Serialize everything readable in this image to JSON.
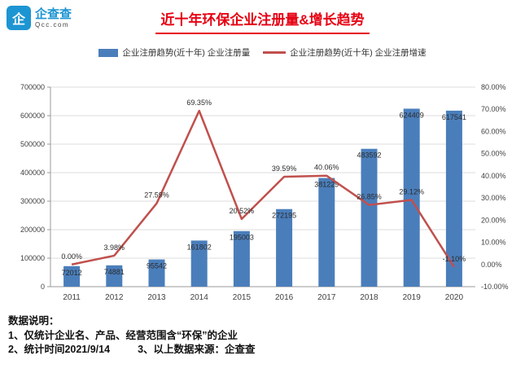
{
  "header": {
    "logo_glyph": "企",
    "logo_name": "企查查",
    "logo_domain": "Qcc.com",
    "title": "近十年环保企业注册量&增长趋势"
  },
  "chart_data": {
    "type": "bar",
    "title": "近十年环保企业注册量&增长趋势",
    "categories": [
      "2011",
      "2012",
      "2013",
      "2014",
      "2015",
      "2016",
      "2017",
      "2018",
      "2019",
      "2020"
    ],
    "series": [
      {
        "name": "企业注册量",
        "legend": "企业注册趋势(近十年) 企业注册量",
        "type": "bar",
        "color": "#4a7ebb",
        "values": [
          72012,
          74881,
          95542,
          161802,
          195003,
          272195,
          381229,
          483592,
          624409,
          617541
        ]
      },
      {
        "name": "企业注册增速",
        "legend": "企业注册趋势(近十年) 企业注册增速",
        "type": "line",
        "color": "#c0504d",
        "values_percent": [
          0.0,
          3.98,
          27.59,
          69.35,
          20.52,
          39.59,
          40.06,
          26.85,
          29.12,
          -1.1
        ],
        "labels": [
          "0.00%",
          "3.98%",
          "27.59%",
          "69.35%",
          "20.52%",
          "39.59%",
          "40.06%",
          "26.85%",
          "29.12%",
          "-1.10%"
        ]
      }
    ],
    "left_axis": {
      "min": 0,
      "max": 700000,
      "step": 100000,
      "ticks": [
        "700000",
        "600000",
        "500000",
        "400000",
        "300000",
        "200000",
        "100000",
        "0"
      ]
    },
    "right_axis": {
      "min": -10,
      "max": 80,
      "step": 10,
      "ticks": [
        "80.00%",
        "70.00%",
        "60.00%",
        "50.00%",
        "40.00%",
        "30.00%",
        "20.00%",
        "10.00%",
        "0.00%",
        "-10.00%"
      ]
    },
    "grid": true,
    "legend_position": "top"
  },
  "footer": {
    "heading": "数据说明：",
    "line1": "1、仅统计企业名、产品、经营范围含“环保”的企业",
    "line2": "2、统计时间2021/9/14",
    "line3": "3、以上数据来源：企查查"
  }
}
